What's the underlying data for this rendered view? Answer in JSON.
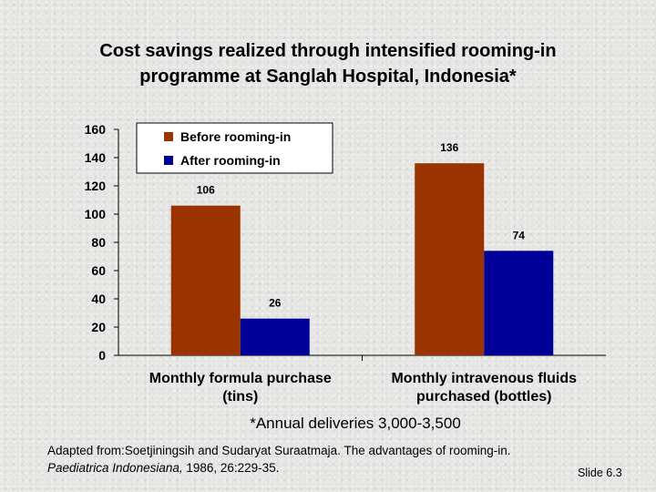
{
  "slide": {
    "title_line1": "Cost savings realized through intensified rooming-in",
    "title_line2": "programme at Sanglah Hospital, Indonesia*",
    "footnote": "*Annual deliveries 3,000-3,500",
    "source_line1": "Adapted from:Soetjiningsih and Sudaryat Suraatmaja. The advantages of rooming-in.",
    "source_journal": "Paediatrica Indonesiana,",
    "source_rest": " 1986, 26:229-35.",
    "slide_number": "Slide 6.3"
  },
  "chart_data": {
    "type": "bar",
    "title": "Cost savings realized through intensified rooming-in programme at Sanglah Hospital, Indonesia*",
    "categories": [
      [
        "Monthly formula purchase",
        "(tins)"
      ],
      [
        "Monthly intravenous fluids",
        "purchased (bottles)"
      ]
    ],
    "series": [
      {
        "name": "Before rooming-in",
        "values": [
          106,
          136
        ],
        "color": "#993300"
      },
      {
        "name": "After rooming-in",
        "values": [
          26,
          74
        ],
        "color": "#000099"
      }
    ],
    "ylim": [
      0,
      160
    ],
    "yticks": [
      0,
      20,
      40,
      60,
      80,
      100,
      120,
      140,
      160
    ],
    "data_labels": true,
    "grid": false,
    "legend": "top-left"
  }
}
